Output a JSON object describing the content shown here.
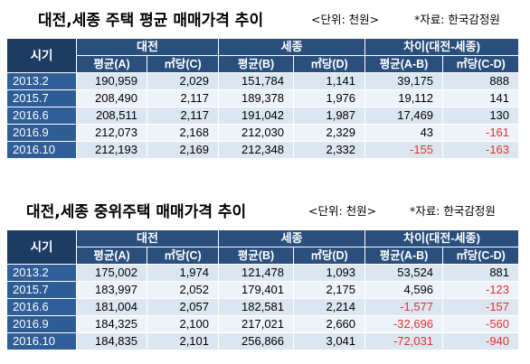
{
  "table1": {
    "title": "대전,세종 주택 평균 매매가격 추이",
    "unit": "<단위: 천원>",
    "source": "*자료: 한국감정원",
    "header": {
      "period": "시기",
      "group_daejeon": "대전",
      "group_sejong": "세종",
      "group_diff": "차이(대전-세종)",
      "col_a": "평균(A)",
      "col_c": "㎡당(C)",
      "col_b": "평균(B)",
      "col_d": "㎡당(D)",
      "col_ab": "평균(A-B)",
      "col_cd": "㎡당(C-D)"
    },
    "rows": [
      {
        "period": "2013.2",
        "a": "190,959",
        "c": "2,029",
        "b": "151,784",
        "d": "1,141",
        "ab": "39,175",
        "cd": "888"
      },
      {
        "period": "2015.7",
        "a": "208,490",
        "c": "2,117",
        "b": "189,378",
        "d": "1,976",
        "ab": "19,112",
        "cd": "141"
      },
      {
        "period": "2016.6",
        "a": "208,511",
        "c": "2,117",
        "b": "191,042",
        "d": "1,987",
        "ab": "17,469",
        "cd": "130"
      },
      {
        "period": "2016.9",
        "a": "212,073",
        "c": "2,168",
        "b": "212,030",
        "d": "2,329",
        "ab": "43",
        "cd": "-161"
      },
      {
        "period": "2016.10",
        "a": "212,193",
        "c": "2,169",
        "b": "212,348",
        "d": "2,332",
        "ab": "-155",
        "cd": "-163"
      }
    ]
  },
  "table2": {
    "title": "대전,세종 중위주택 매매가격 추이",
    "unit": "<단위: 천원>",
    "source": "*자료: 한국감정원",
    "header": {
      "period": "시기",
      "group_daejeon": "대전",
      "group_sejong": "세종",
      "group_diff": "차이(대전-세종)",
      "col_a": "평균(A)",
      "col_c": "㎡당(C)",
      "col_b": "평균(B)",
      "col_d": "㎡당(D)",
      "col_ab": "평균(A-B)",
      "col_cd": "㎡당(C-D)"
    },
    "rows": [
      {
        "period": "2013.2",
        "a": "175,002",
        "c": "1,974",
        "b": "121,478",
        "d": "1,093",
        "ab": "53,524",
        "cd": "881"
      },
      {
        "period": "2015.7",
        "a": "183,997",
        "c": "2,052",
        "b": "179,401",
        "d": "2,175",
        "ab": "4,596",
        "cd": "-123"
      },
      {
        "period": "2016.6",
        "a": "181,004",
        "c": "2,057",
        "b": "182,581",
        "d": "2,214",
        "ab": "-1,577",
        "cd": "-157"
      },
      {
        "period": "2016.9",
        "a": "184,325",
        "c": "2,100",
        "b": "217,021",
        "d": "2,660",
        "ab": "-32,696",
        "cd": "-560"
      },
      {
        "period": "2016.10",
        "a": "184,835",
        "c": "2,101",
        "b": "256,866",
        "d": "3,041",
        "ab": "-72,031",
        "cd": "-940"
      }
    ]
  },
  "colors": {
    "header_bg": "#2a4f7c",
    "period_bg": "#2e5d98",
    "row_light": "#dce6f1",
    "negative": "#e0332c"
  }
}
